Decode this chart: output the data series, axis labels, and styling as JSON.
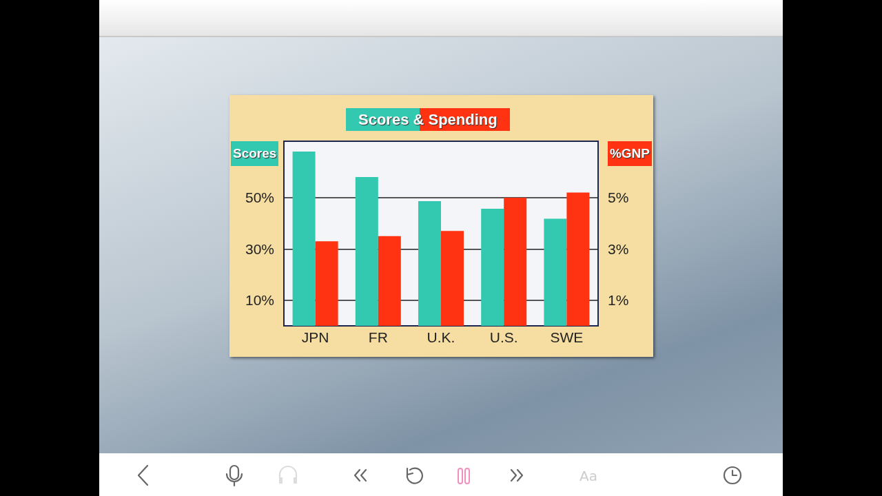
{
  "chart_data": {
    "type": "bar",
    "title": "Scores & Spending",
    "ylabel": "Scores",
    "y2label": "%GNP",
    "categories": [
      "JPN",
      "FR",
      "U.K.",
      "U.S.",
      "SWE"
    ],
    "series": [
      {
        "color": "#33c9b0",
        "values": [
          68,
          58,
          48.6,
          45.7,
          41.8
        ]
      },
      {
        "color": "#ff3311",
        "axis": "y2",
        "values": [
          3.3,
          3.5,
          3.7,
          5.0,
          5.2
        ]
      }
    ],
    "ylim": [
      0,
      72
    ],
    "yticks": [
      {
        "value": 10,
        "label": "10%"
      },
      {
        "value": 30,
        "label": "30%"
      },
      {
        "value": 50,
        "label": "50%"
      }
    ],
    "y2lim": [
      0,
      7.2
    ],
    "y2ticks": [
      {
        "value": 1,
        "label": "1%"
      },
      {
        "value": 3,
        "label": "3%"
      },
      {
        "value": 5,
        "label": "5%"
      }
    ],
    "grid": "y",
    "annotations": [
      "Aa"
    ]
  }
}
